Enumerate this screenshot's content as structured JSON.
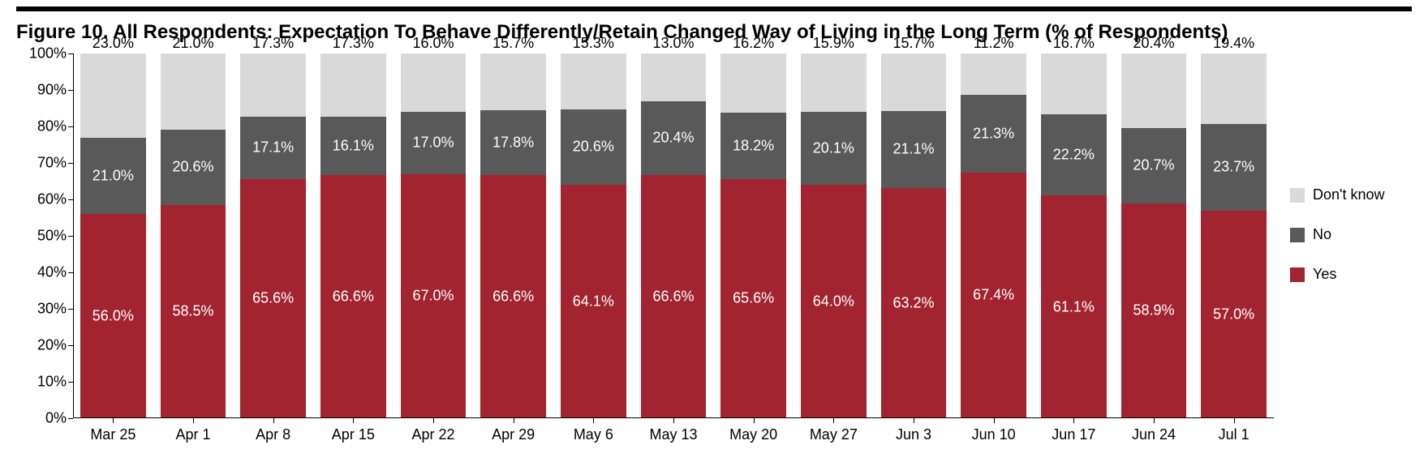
{
  "title": "Figure 10. All Respondents: Expectation To Behave Differently/Retain Changed Way of Living in the Long Term (% of Respondents)",
  "chart": {
    "type": "stacked-bar",
    "ylim": [
      0,
      100
    ],
    "ytick_step": 10,
    "ytick_suffix": "%",
    "background_color": "#ffffff",
    "axis_color": "#000000",
    "bar_width_ratio": 0.82,
    "title_fontsize": 24,
    "tick_fontsize": 18,
    "value_fontsize": 18,
    "categories": [
      "Mar 25",
      "Apr 1",
      "Apr 8",
      "Apr 15",
      "Apr 22",
      "Apr 29",
      "May 6",
      "May 13",
      "May 20",
      "May 27",
      "Jun 3",
      "Jun 10",
      "Jun 17",
      "Jun 24",
      "Jul 1"
    ],
    "series": [
      {
        "key": "yes",
        "label": "Yes",
        "color": "#a32431",
        "label_color": "#ffffff",
        "label_pos": "middle",
        "values": [
          56.0,
          58.5,
          65.6,
          66.6,
          67.0,
          66.6,
          64.1,
          66.6,
          65.6,
          64.0,
          63.2,
          67.4,
          61.1,
          58.9,
          57.0
        ]
      },
      {
        "key": "no",
        "label": "No",
        "color": "#595959",
        "label_color": "#ffffff",
        "label_pos": "middle",
        "values": [
          21.0,
          20.6,
          17.1,
          16.1,
          17.0,
          17.8,
          20.6,
          20.4,
          18.2,
          20.1,
          21.1,
          21.3,
          22.2,
          20.7,
          23.7
        ]
      },
      {
        "key": "dont_know",
        "label": "Don't know",
        "color": "#d9d9d9",
        "label_color": "#000000",
        "label_pos": "above",
        "values": [
          23.0,
          21.0,
          17.3,
          17.3,
          16.0,
          15.7,
          15.3,
          13.0,
          16.2,
          15.9,
          15.7,
          11.2,
          16.7,
          20.4,
          19.4
        ]
      }
    ],
    "legend": {
      "order": [
        "dont_know",
        "no",
        "yes"
      ],
      "position": "right"
    }
  }
}
